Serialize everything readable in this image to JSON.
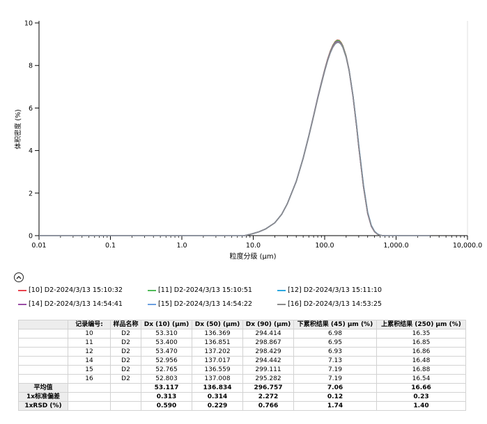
{
  "chart_data": {
    "type": "line",
    "title": "",
    "xlabel": "粒度分级 (μm)",
    "ylabel": "体积密度 (%)",
    "xscale": "log",
    "xlim": [
      0.01,
      10000
    ],
    "ylim": [
      0,
      10
    ],
    "x_ticks": [
      0.01,
      0.1,
      1,
      10,
      100,
      1000,
      10000
    ],
    "x_tick_labels": [
      "0.01",
      "0.1",
      "1.0",
      "10.0",
      "100.0",
      "1,000.0",
      "10,000.0"
    ],
    "y_ticks": [
      0,
      2,
      4,
      6,
      8,
      10
    ],
    "y_tick_labels": [
      "0",
      "2",
      "4",
      "6",
      "8",
      "10"
    ],
    "grid": false,
    "baseline_range": [
      0.01,
      3000
    ],
    "x": [
      7.5,
      9,
      10,
      12,
      15,
      20,
      25,
      30,
      40,
      50,
      60,
      70,
      80,
      90,
      100,
      110,
      120,
      130,
      140,
      150,
      160,
      170,
      180,
      200,
      220,
      250,
      280,
      300,
      350,
      400,
      450,
      500,
      550,
      600,
      650,
      700
    ],
    "series": [
      {
        "name": "[10] D2-2024/3/13 15:10:32",
        "color": "#e8434d",
        "values": [
          0,
          0.06,
          0.1,
          0.18,
          0.32,
          0.6,
          1.0,
          1.5,
          2.55,
          3.65,
          4.7,
          5.65,
          6.5,
          7.2,
          7.8,
          8.3,
          8.68,
          8.95,
          9.12,
          9.2,
          9.18,
          9.08,
          8.92,
          8.45,
          7.8,
          6.55,
          5.15,
          4.2,
          2.3,
          1.05,
          0.45,
          0.18,
          0.07,
          0.02,
          0,
          0
        ]
      },
      {
        "name": "[11] D2-2024/3/13 15:10:51",
        "color": "#4fba58",
        "values": [
          0,
          0.06,
          0.1,
          0.18,
          0.32,
          0.6,
          1.0,
          1.5,
          2.55,
          3.65,
          4.7,
          5.64,
          6.49,
          7.19,
          7.79,
          8.28,
          8.66,
          8.93,
          9.1,
          9.18,
          9.16,
          9.06,
          8.9,
          8.43,
          7.78,
          6.53,
          5.13,
          4.18,
          2.28,
          1.04,
          0.44,
          0.18,
          0.07,
          0.02,
          0,
          0
        ]
      },
      {
        "name": "[12] D2-2024/3/13 15:11:10",
        "color": "#2da8e0",
        "values": [
          0,
          0.06,
          0.1,
          0.18,
          0.32,
          0.6,
          1.0,
          1.5,
          2.55,
          3.64,
          4.69,
          5.63,
          6.48,
          7.17,
          7.76,
          8.25,
          8.62,
          8.88,
          9.04,
          9.11,
          9.1,
          9.01,
          8.86,
          8.4,
          7.77,
          6.55,
          5.18,
          4.25,
          2.36,
          1.1,
          0.48,
          0.2,
          0.08,
          0.02,
          0,
          0
        ]
      },
      {
        "name": "[14] D2-2024/3/13 14:54:41",
        "color": "#9a4ea6",
        "values": [
          0,
          0.06,
          0.1,
          0.18,
          0.32,
          0.6,
          1.0,
          1.5,
          2.55,
          3.64,
          4.69,
          5.63,
          6.48,
          7.17,
          7.77,
          8.26,
          8.63,
          8.9,
          9.06,
          9.13,
          9.11,
          9.02,
          8.86,
          8.39,
          7.75,
          6.5,
          5.12,
          4.17,
          2.28,
          1.04,
          0.44,
          0.18,
          0.07,
          0.02,
          0,
          0
        ]
      },
      {
        "name": "[15] D2-2024/3/13 14:54:22",
        "color": "#6b9fe0",
        "values": [
          0,
          0.06,
          0.1,
          0.18,
          0.32,
          0.6,
          1.0,
          1.5,
          2.54,
          3.63,
          4.67,
          5.61,
          6.45,
          7.14,
          7.73,
          8.22,
          8.59,
          8.85,
          9.01,
          9.08,
          9.07,
          8.99,
          8.84,
          8.39,
          7.77,
          6.56,
          5.2,
          4.27,
          2.37,
          1.1,
          0.48,
          0.2,
          0.08,
          0.02,
          0,
          0
        ]
      },
      {
        "name": "[16] D2-2024/3/13 14:53:25",
        "color": "#8a8a8a",
        "values": [
          0,
          0.06,
          0.1,
          0.18,
          0.32,
          0.6,
          1.0,
          1.5,
          2.54,
          3.63,
          4.67,
          5.61,
          6.45,
          7.14,
          7.74,
          8.23,
          8.6,
          8.86,
          9.02,
          9.09,
          9.08,
          8.99,
          8.84,
          8.38,
          7.75,
          6.53,
          5.15,
          4.21,
          2.32,
          1.07,
          0.46,
          0.19,
          0.07,
          0.02,
          0,
          0
        ]
      }
    ]
  },
  "legend": {
    "collapse_icon": "chevron-up-icon",
    "items": [
      {
        "label": "[10] D2-2024/3/13 15:10:32",
        "color": "#e8434d"
      },
      {
        "label": "[11] D2-2024/3/13 15:10:51",
        "color": "#4fba58"
      },
      {
        "label": "[12] D2-2024/3/13 15:11:10",
        "color": "#2da8e0"
      },
      {
        "label": "[14] D2-2024/3/13 14:54:41",
        "color": "#9a4ea6"
      },
      {
        "label": "[15] D2-2024/3/13 14:54:22",
        "color": "#6b9fe0"
      },
      {
        "label": "[16] D2-2024/3/13 14:53:25",
        "color": "#8a8a8a"
      }
    ]
  },
  "table": {
    "headers": [
      "记录编号:",
      "样品名称",
      "Dx (10) (μm)",
      "Dx (50) (μm)",
      "Dx (90) (μm)",
      "下累积结果 (45) μm (%)",
      "上累积结果 (250) μm (%)"
    ],
    "rows": [
      [
        "10",
        "D2",
        "53.310",
        "136.369",
        "294.414",
        "6.98",
        "16.35"
      ],
      [
        "11",
        "D2",
        "53.400",
        "136.851",
        "298.867",
        "6.95",
        "16.85"
      ],
      [
        "12",
        "D2",
        "53.470",
        "137.202",
        "298.429",
        "6.93",
        "16.86"
      ],
      [
        "14",
        "D2",
        "52.956",
        "137.017",
        "294.442",
        "7.13",
        "16.48"
      ],
      [
        "15",
        "D2",
        "52.765",
        "136.559",
        "299.111",
        "7.19",
        "16.88"
      ],
      [
        "16",
        "D2",
        "52.803",
        "137.008",
        "295.282",
        "7.19",
        "16.54"
      ]
    ],
    "stats": [
      {
        "label": "平均值",
        "values": [
          "53.117",
          "136.834",
          "296.757",
          "7.06",
          "16.66"
        ]
      },
      {
        "label": "1x标准偏差",
        "values": [
          "0.313",
          "0.314",
          "2.272",
          "0.12",
          "0.23"
        ]
      },
      {
        "label": "1xRSD (%)",
        "values": [
          "0.590",
          "0.229",
          "0.766",
          "1.74",
          "1.40"
        ]
      }
    ]
  }
}
